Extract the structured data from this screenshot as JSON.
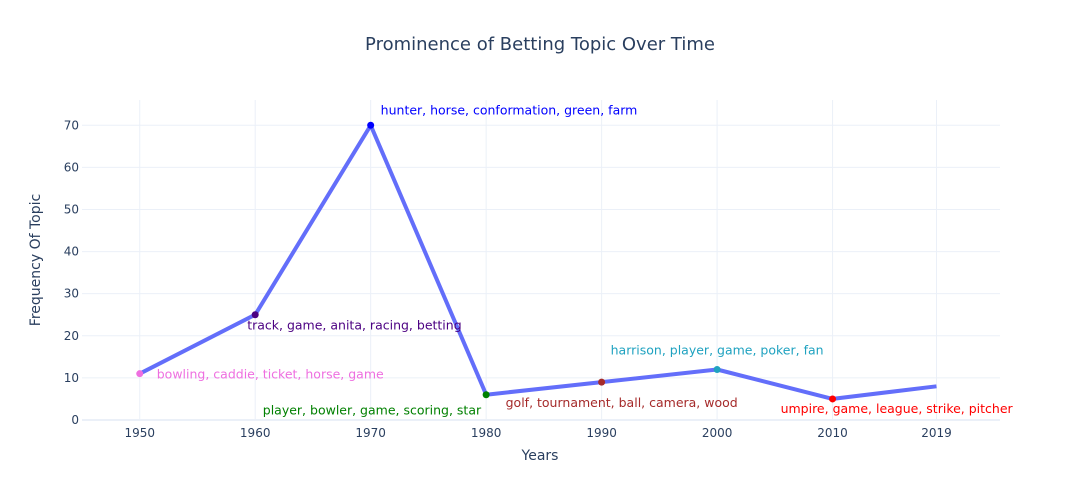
{
  "chart_data": {
    "type": "line",
    "title": "Prominence of Betting Topic Over Time",
    "xlabel": "Years",
    "ylabel": "Frequency Of Topic",
    "xlim": [
      1945,
      2024.5
    ],
    "ylim": [
      0,
      76
    ],
    "x_ticks": [
      1950,
      1960,
      1970,
      1980,
      1990,
      2000,
      2010,
      2019
    ],
    "y_ticks": [
      0,
      10,
      20,
      30,
      40,
      50,
      60,
      70
    ],
    "line_color": "#636efa",
    "series": [
      {
        "name": "Betting",
        "x": [
          1950,
          1960,
          1970,
          1980,
          1990,
          2000,
          2010,
          2019
        ],
        "values": [
          11,
          25,
          70,
          6,
          9,
          12,
          5,
          8
        ]
      }
    ],
    "annotations": [
      {
        "x": 1950,
        "y": 11,
        "text": "bowling, caddie, ticket, horse, game",
        "color": "#ee6fe0",
        "position": "right"
      },
      {
        "x": 1960,
        "y": 25,
        "text": "track, game, anita, racing, betting",
        "color": "#4b0082",
        "position": "below-right"
      },
      {
        "x": 1970,
        "y": 70,
        "text": "hunter, horse, conformation, green, farm",
        "color": "#0000ff",
        "position": "above-right"
      },
      {
        "x": 1980,
        "y": 6,
        "text": "player, bowler, game, scoring, star",
        "color": "#008000",
        "position": "below-left"
      },
      {
        "x": 1990,
        "y": 9,
        "text": "golf, tournament, ball, camera, wood",
        "color": "#a52a2a",
        "position": "below-left"
      },
      {
        "x": 2000,
        "y": 12,
        "text": "harrison, player, game, poker, fan",
        "color": "#1fa2c0",
        "position": "above"
      },
      {
        "x": 2010,
        "y": 5,
        "text": "umpire, game, league, strike, pitcher",
        "color": "#ff0000",
        "position": "below-right"
      }
    ]
  }
}
